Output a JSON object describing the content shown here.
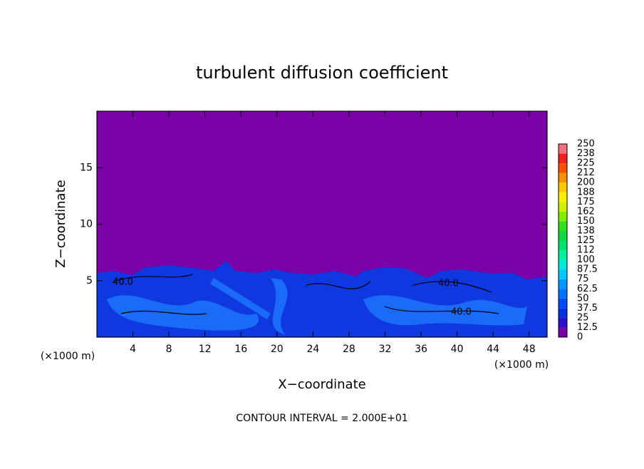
{
  "chart_data": {
    "type": "contour",
    "title": "turbulent diffusion coefficient",
    "x_label": "X−coordinate",
    "y_label": "Z−coordinate",
    "x_unit_left": "(×1000 m)",
    "x_unit_right": "(×1000 m)",
    "footer": "CONTOUR INTERVAL = 2.000E+01",
    "contour_labels": [
      "40.0",
      "40.0",
      "40.0"
    ],
    "xlim": [
      0,
      50
    ],
    "xticks": [
      4,
      8,
      12,
      16,
      20,
      24,
      28,
      32,
      36,
      40,
      44,
      48
    ],
    "ylim": [
      0,
      20
    ],
    "yticks": [
      5,
      10,
      15
    ],
    "colorbar": {
      "levels": [
        0,
        12.5,
        25,
        37.5,
        50,
        62.5,
        75,
        87.5,
        100,
        112,
        125,
        138,
        150,
        162,
        175,
        188,
        200,
        212,
        225,
        238,
        250
      ],
      "colors": [
        "#7a00a8",
        "#2a10c8",
        "#0030e0",
        "#0048f8",
        "#0070ff",
        "#0098ff",
        "#00c8f8",
        "#00e8d8",
        "#00f0a0",
        "#00e070",
        "#10d840",
        "#30e020",
        "#80f000",
        "#d0f000",
        "#f8f000",
        "#f8c800",
        "#f89000",
        "#f85000",
        "#f02020",
        "#f07080"
      ]
    }
  }
}
